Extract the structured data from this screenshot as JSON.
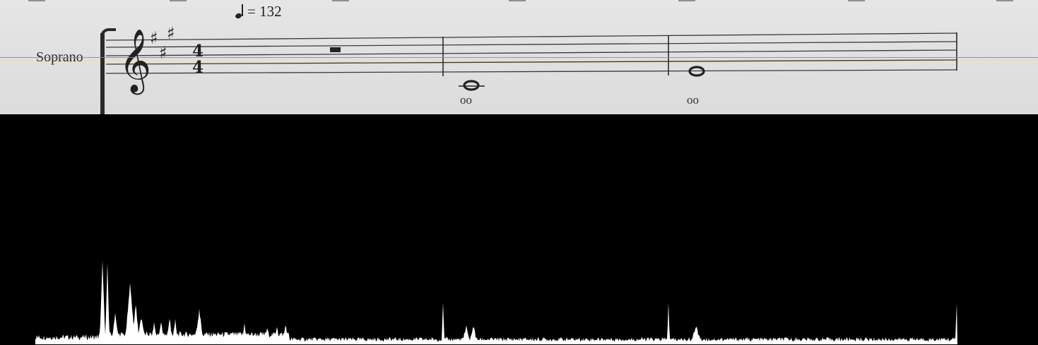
{
  "score": {
    "tempo_marking": "= 132",
    "instrument_label": "Soprano",
    "time_signature": {
      "top": "4",
      "bottom": "4"
    },
    "lyrics": [
      "oo",
      "oo"
    ]
  },
  "colors": {
    "paper": "#e3e3e3",
    "ink": "#2a2a2a",
    "cursor_line": "#29d52b",
    "histogram_fill": "#ffffff",
    "background": "#000000"
  },
  "icons": {
    "treble_clef": "treble-clef-icon",
    "sharp": "sharp-icon",
    "quarter_note": "quarter-note-icon",
    "whole_rest": "whole-rest-icon",
    "whole_note": "whole-note-icon"
  }
}
